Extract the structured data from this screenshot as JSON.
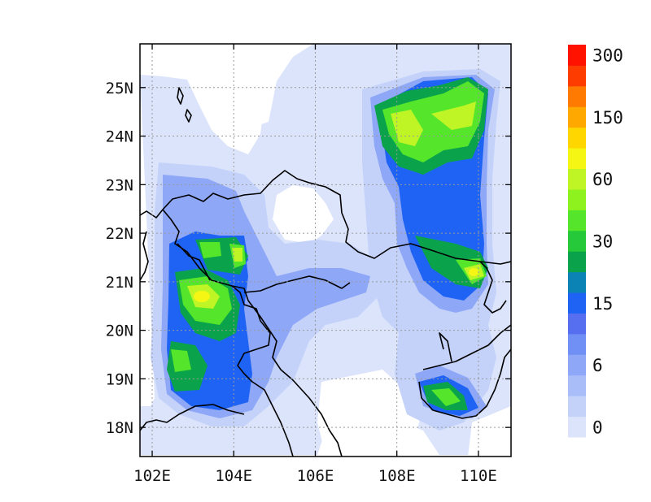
{
  "map": {
    "lon_range": [
      101.7,
      110.8
    ],
    "lat_range": [
      17.4,
      25.9
    ],
    "x_ticks": [
      {
        "value": 102,
        "label": "102E"
      },
      {
        "value": 104,
        "label": "104E"
      },
      {
        "value": 106,
        "label": "106E"
      },
      {
        "value": 108,
        "label": "108E"
      },
      {
        "value": 110,
        "label": "110E"
      }
    ],
    "y_ticks": [
      {
        "value": 18,
        "label": "18N"
      },
      {
        "value": 19,
        "label": "19N"
      },
      {
        "value": 20,
        "label": "20N"
      },
      {
        "value": 21,
        "label": "21N"
      },
      {
        "value": 22,
        "label": "22N"
      },
      {
        "value": 23,
        "label": "23N"
      },
      {
        "value": 24,
        "label": "24N"
      },
      {
        "value": 25,
        "label": "25N"
      }
    ],
    "gridlines": true
  },
  "colorbar": {
    "colors": [
      "#dbe4fb",
      "#c4d2fa",
      "#a9bdf9",
      "#8ea7f7",
      "#7090f5",
      "#566ef0",
      "#1f63f5",
      "#0b83b4",
      "#0aa34b",
      "#25c93a",
      "#55e52a",
      "#8ef21e",
      "#bff525",
      "#f6f615",
      "#ffd600",
      "#ffa800",
      "#ff7a00",
      "#ff3c00",
      "#ff1300"
    ],
    "labels": [
      {
        "level": 0,
        "text": "0"
      },
      {
        "level": 3,
        "text": "6"
      },
      {
        "level": 6,
        "text": "15"
      },
      {
        "level": 9,
        "text": "30"
      },
      {
        "level": 12,
        "text": "60"
      },
      {
        "level": 15,
        "text": "150"
      },
      {
        "level": 18,
        "text": "300"
      }
    ]
  },
  "chart_data": {
    "type": "heatmap",
    "title": "",
    "xlabel": "",
    "ylabel": "",
    "xlim": [
      101.7,
      110.8
    ],
    "ylim": [
      17.4,
      25.9
    ],
    "levels": [
      0,
      6,
      15,
      30,
      60,
      150,
      300
    ],
    "grid": true,
    "legend": "right colorbar",
    "features": [
      {
        "lon": 103.2,
        "lat": 20.7,
        "level": 13
      },
      {
        "lon": 104.0,
        "lat": 21.6,
        "level": 12
      },
      {
        "lon": 102.8,
        "lat": 21.8,
        "level": 10
      },
      {
        "lon": 102.5,
        "lat": 19.4,
        "level": 10
      },
      {
        "lon": 103.0,
        "lat": 18.8,
        "level": 10
      },
      {
        "lon": 108.6,
        "lat": 24.2,
        "level": 12
      },
      {
        "lon": 109.6,
        "lat": 24.8,
        "level": 11
      },
      {
        "lon": 109.0,
        "lat": 23.8,
        "level": 10
      },
      {
        "lon": 110.0,
        "lat": 21.2,
        "level": 13
      },
      {
        "lon": 109.0,
        "lat": 18.6,
        "level": 11
      },
      {
        "lon": 108.8,
        "lat": 21.8,
        "level": 9
      },
      {
        "lon": 106.0,
        "lat": 21.3,
        "level": 8
      }
    ]
  }
}
